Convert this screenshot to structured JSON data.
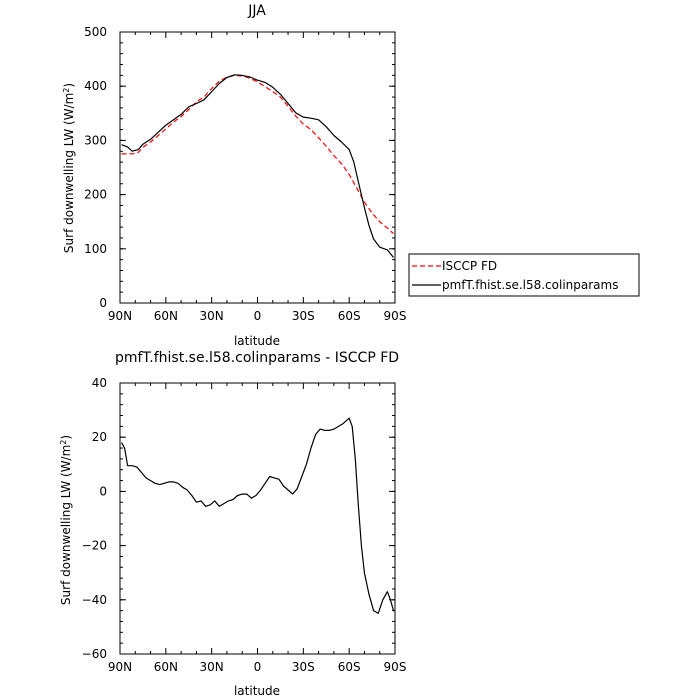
{
  "chart_data": [
    {
      "type": "line",
      "title": "JJA",
      "xlabel": "latitude",
      "ylabel": "Surf downwelling LW (W/m²)",
      "ylabel_base": "Surf downwelling LW (W/m",
      "ylabel_sup": "2",
      "ylabel_tail": ")",
      "xlim": [
        90,
        -90
      ],
      "ylim": [
        0,
        500
      ],
      "x_ticks": [
        90,
        60,
        30,
        0,
        -30,
        -60,
        -90
      ],
      "x_tick_labels": [
        "90N",
        "60N",
        "30N",
        "0",
        "30S",
        "60S",
        "90S"
      ],
      "y_ticks": [
        0,
        100,
        200,
        300,
        400,
        500
      ],
      "y_tick_labels": [
        "0",
        "100",
        "200",
        "300",
        "400",
        "500"
      ],
      "legend": {
        "placement": "right"
      },
      "series": [
        {
          "name": "ISCCP FD",
          "color": "#ff0000",
          "dash": "dashed",
          "x": [
            89,
            85,
            82,
            78,
            75,
            70,
            65,
            60,
            55,
            50,
            45,
            40,
            35,
            30,
            25,
            20,
            15,
            10,
            5,
            0,
            -5,
            -10,
            -15,
            -20,
            -25,
            -30,
            -35,
            -40,
            -45,
            -50,
            -55,
            -60,
            -65,
            -70,
            -75,
            -80,
            -85,
            -89
          ],
          "y": [
            275,
            275,
            275,
            278,
            287,
            297,
            309,
            321,
            334,
            344,
            357,
            371,
            380,
            396,
            409,
            417,
            420,
            419,
            415,
            408,
            399,
            390,
            380,
            363,
            345,
            330,
            320,
            305,
            289,
            272,
            257,
            237,
            212,
            186,
            166,
            150,
            138,
            128
          ]
        },
        {
          "name": "pmfT.fhist.se.l58.colinparams",
          "color": "#000000",
          "dash": "solid",
          "x": [
            89,
            85,
            82,
            78,
            75,
            70,
            65,
            60,
            55,
            50,
            45,
            40,
            35,
            30,
            25,
            20,
            15,
            10,
            5,
            0,
            -5,
            -10,
            -15,
            -20,
            -25,
            -30,
            -35,
            -40,
            -45,
            -50,
            -55,
            -60,
            -63,
            -66,
            -70,
            -73,
            -76,
            -80,
            -85,
            -89
          ],
          "y": [
            292,
            288,
            280,
            283,
            293,
            302,
            315,
            328,
            338,
            348,
            362,
            368,
            375,
            390,
            405,
            416,
            421,
            420,
            417,
            411,
            407,
            398,
            385,
            368,
            351,
            343,
            341,
            338,
            325,
            309,
            297,
            283,
            260,
            224,
            176,
            143,
            118,
            103,
            98,
            84
          ]
        }
      ]
    },
    {
      "type": "line",
      "title": "pmfT.fhist.se.l58.colinparams - ISCCP FD",
      "xlabel": "latitude",
      "ylabel": "Surf downwelling LW (W/m²)",
      "ylabel_base": "Surf downwelling LW (W/m",
      "ylabel_sup": "2",
      "ylabel_tail": ")",
      "xlim": [
        90,
        -90
      ],
      "ylim": [
        -60,
        40
      ],
      "x_ticks": [
        90,
        60,
        30,
        0,
        -30,
        -60,
        -90
      ],
      "x_tick_labels": [
        "90N",
        "60N",
        "30N",
        "0",
        "30S",
        "60S",
        "90S"
      ],
      "y_ticks": [
        -60,
        -40,
        -20,
        0,
        20,
        40
      ],
      "y_tick_labels": [
        "−60",
        "−40",
        "−20",
        "0",
        "20",
        "40"
      ],
      "series": [
        {
          "color": "#000000",
          "dash": "solid",
          "x": [
            89,
            87,
            85,
            82,
            79,
            76,
            73,
            70,
            67,
            64,
            61,
            58,
            55,
            52,
            49,
            46,
            43,
            40,
            37,
            34,
            31,
            28,
            25,
            22,
            19,
            16,
            13,
            10,
            7,
            4,
            1,
            -2,
            -5,
            -8,
            -11,
            -14,
            -17,
            -20,
            -23,
            -26,
            -29,
            -32,
            -35,
            -38,
            -41,
            -44,
            -47,
            -50,
            -53,
            -56,
            -58,
            -60,
            -62,
            -64,
            -66,
            -68,
            -70,
            -73,
            -76,
            -79,
            -82,
            -85,
            -87,
            -89
          ],
          "y": [
            18,
            16,
            9.5,
            9.5,
            9,
            7,
            5,
            4,
            3,
            2.5,
            3,
            3.5,
            3.5,
            3,
            1.5,
            0.5,
            -1.5,
            -4,
            -3.5,
            -5.5,
            -5,
            -3.5,
            -5.5,
            -4.5,
            -3.5,
            -3,
            -1.5,
            -1,
            -1,
            -2.5,
            -1.5,
            0.5,
            3,
            5.5,
            5,
            4.5,
            2,
            0.5,
            -1,
            1,
            5.5,
            10,
            16,
            21,
            23,
            22.5,
            22.5,
            23,
            24,
            25,
            26,
            27,
            24,
            12,
            -5,
            -20,
            -30,
            -38,
            -44,
            -45,
            -40,
            -37,
            -40,
            -44
          ]
        }
      ]
    }
  ]
}
